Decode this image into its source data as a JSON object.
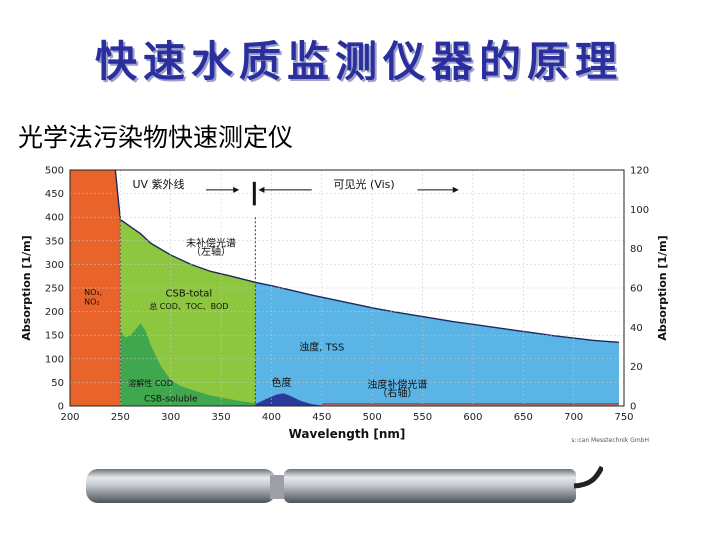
{
  "slide": {
    "title": "快速水质监测仪器的原理",
    "subtitle": "光学法污染物快速测定仪"
  },
  "chart_data": {
    "type": "area",
    "xlabel": "Wavelength [nm]",
    "ylabel_left": "Absorption [1/m]",
    "ylabel_right": "Absorption [1/m]",
    "xlim": [
      200,
      750
    ],
    "ylim_left": [
      0,
      500
    ],
    "ylim_right": [
      0,
      120
    ],
    "x_ticks": [
      200,
      250,
      300,
      350,
      400,
      450,
      500,
      550,
      600,
      650,
      700,
      750
    ],
    "y_ticks_left": [
      0,
      50,
      100,
      150,
      200,
      250,
      300,
      350,
      400,
      450,
      500
    ],
    "y_ticks_right": [
      0,
      20,
      40,
      60,
      80,
      100,
      120
    ],
    "grid": true,
    "band_uv_label": "UV  紫外线",
    "band_vis_label": "可见光  (Vis)",
    "credit": "s::can Messtechnik GmbH",
    "regions": [
      {
        "key": "nitrate",
        "label": "NO₃, NO₂",
        "color": "#e8642a",
        "x": [
          200,
          245,
          250
        ],
        "y": [
          500,
          500,
          0
        ]
      },
      {
        "key": "csb_total",
        "label": "CSB-total",
        "sub_label": "总 COD、TOC、BOD",
        "color": "#8dc63f",
        "x": [
          250,
          260,
          270,
          280,
          300,
          320,
          340,
          360,
          384
        ],
        "y": [
          395,
          380,
          365,
          345,
          320,
          300,
          285,
          275,
          262
        ]
      },
      {
        "key": "csb_soluble",
        "label": "CSB-soluble",
        "sub_label": "溶解性 COD",
        "color": "#3fa84e",
        "x": [
          250,
          255,
          260,
          265,
          270,
          275,
          280,
          290,
          300,
          310,
          320,
          330,
          340,
          350,
          360,
          370,
          384
        ],
        "y": [
          160,
          145,
          150,
          162,
          175,
          160,
          130,
          85,
          55,
          42,
          35,
          28,
          22,
          18,
          14,
          10,
          6
        ]
      },
      {
        "key": "turbidity",
        "label": "浊度, TSS",
        "color": "#5ab4e5",
        "x": [
          384,
          400,
          420,
          440,
          460,
          480,
          500,
          520,
          540,
          560,
          580,
          600,
          620,
          640,
          660,
          680,
          700,
          720,
          745
        ],
        "y": [
          262,
          255,
          245,
          235,
          226,
          217,
          208,
          200,
          193,
          186,
          179,
          173,
          167,
          161,
          155,
          149,
          144,
          139,
          135
        ]
      },
      {
        "key": "color",
        "label": "色度",
        "color": "#2a3a9a",
        "x": [
          384,
          395,
          405,
          412,
          420,
          430,
          440,
          450
        ],
        "y": [
          4,
          15,
          24,
          27,
          20,
          10,
          4,
          1
        ]
      }
    ],
    "annotations": [
      {
        "key": "uncompensated",
        "text": "未补偿光谱",
        "text2": "（左轴）"
      },
      {
        "key": "compensated",
        "text": "浊度补偿光谱",
        "text2": "（右轴）"
      }
    ]
  }
}
